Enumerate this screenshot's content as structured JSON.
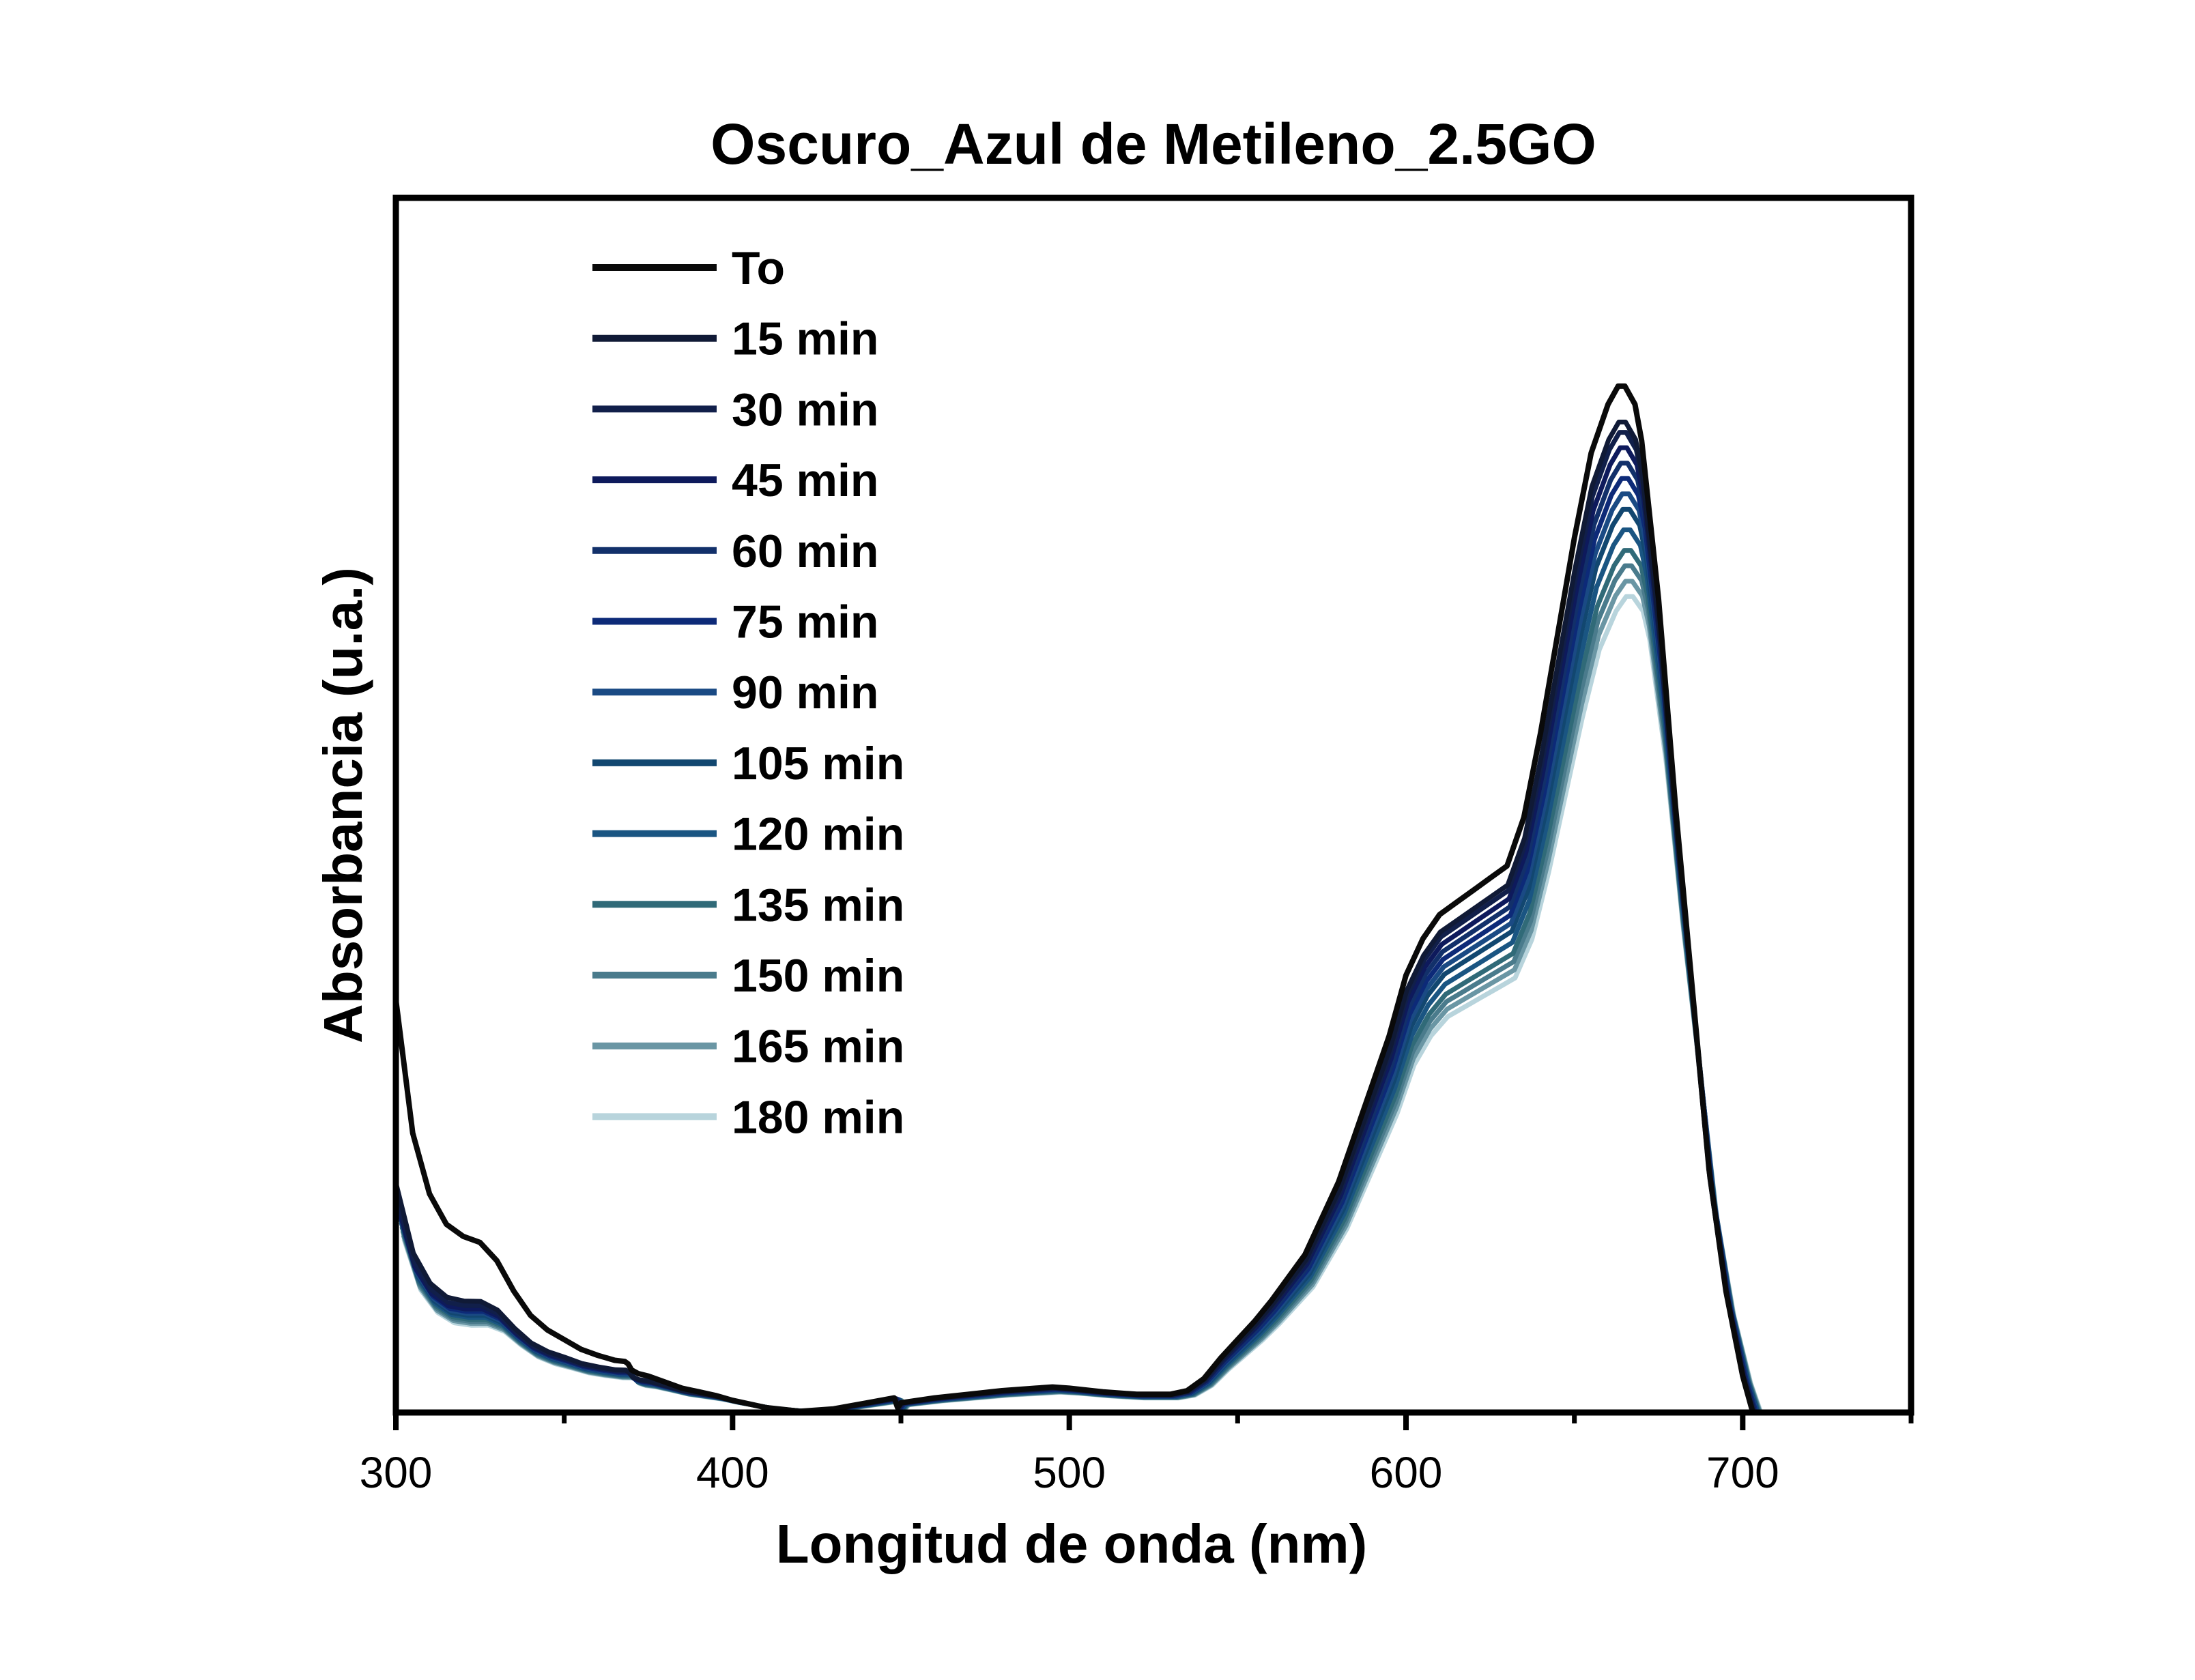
{
  "chart_data": {
    "type": "line",
    "title": "Oscuro_Azul de Metileno_2.5GO",
    "xlabel": "Longitud de onda (nm)",
    "ylabel": "Absorbancia (u.a.)",
    "xlim": [
      300,
      750
    ],
    "ylim": [
      0,
      1.0
    ],
    "xticks": [
      300,
      400,
      500,
      600,
      700
    ],
    "xticks_minor": [
      350,
      450,
      550,
      650,
      750
    ],
    "x_tick_labels": [
      "300",
      "400",
      "500",
      "600",
      "700"
    ],
    "y_ticks_shown": false,
    "grid": false,
    "legend": {
      "position": "top-left"
    },
    "base_profile": {
      "x": [
        300,
        305,
        310,
        315,
        320,
        325,
        330,
        335,
        340,
        345,
        350,
        355,
        360,
        365,
        368,
        369,
        370,
        372,
        375,
        380,
        385,
        390,
        395,
        400,
        410,
        420,
        430,
        440,
        448,
        449,
        450,
        455,
        460,
        470,
        480,
        490,
        495,
        500,
        510,
        520,
        530,
        535,
        540,
        545,
        550,
        555,
        560,
        570,
        580,
        590,
        595,
        600,
        605,
        610,
        615,
        620,
        625,
        630,
        635,
        640,
        645,
        650,
        655,
        660,
        663,
        665,
        668,
        670,
        675,
        680,
        685,
        690,
        695,
        700,
        703
      ],
      "y": [
        0.34,
        0.23,
        0.18,
        0.155,
        0.145,
        0.14,
        0.125,
        0.1,
        0.08,
        0.068,
        0.06,
        0.052,
        0.047,
        0.043,
        0.042,
        0.04,
        0.035,
        0.032,
        0.03,
        0.025,
        0.02,
        0.017,
        0.014,
        0.01,
        0.004,
        0.001,
        0.003,
        0.008,
        0.012,
        0.004,
        0.008,
        0.01,
        0.012,
        0.015,
        0.018,
        0.02,
        0.021,
        0.02,
        0.017,
        0.015,
        0.015,
        0.018,
        0.028,
        0.045,
        0.06,
        0.075,
        0.092,
        0.13,
        0.19,
        0.27,
        0.31,
        0.36,
        0.39,
        0.41,
        0.42,
        0.43,
        0.44,
        0.45,
        0.49,
        0.56,
        0.64,
        0.72,
        0.79,
        0.83,
        0.845,
        0.845,
        0.83,
        0.8,
        0.67,
        0.5,
        0.35,
        0.2,
        0.1,
        0.03,
        0.0
      ]
    },
    "series": [
      {
        "name": "To",
        "scale": 1.0,
        "uv_extra": 1.0,
        "shift": 0,
        "color": "#0a0a0a"
      },
      {
        "name": "15 min",
        "scale": 0.965,
        "uv_extra": 0.55,
        "shift": 0.2,
        "color": "#101a36"
      },
      {
        "name": "30 min",
        "scale": 0.955,
        "uv_extra": 0.52,
        "shift": 0.4,
        "color": "#111f4a"
      },
      {
        "name": "45 min",
        "scale": 0.94,
        "uv_extra": 0.5,
        "shift": 0.6,
        "color": "#0e1a5c"
      },
      {
        "name": "60 min",
        "scale": 0.925,
        "uv_extra": 0.5,
        "shift": 0.8,
        "color": "#12306a"
      },
      {
        "name": "75 min",
        "scale": 0.91,
        "uv_extra": 0.49,
        "shift": 1.0,
        "color": "#0d2a78"
      },
      {
        "name": "90 min",
        "scale": 0.895,
        "uv_extra": 0.48,
        "shift": 1.2,
        "color": "#1a4a84"
      },
      {
        "name": "105 min",
        "scale": 0.88,
        "uv_extra": 0.47,
        "shift": 1.4,
        "color": "#124770"
      },
      {
        "name": "120 min",
        "scale": 0.86,
        "uv_extra": 0.46,
        "shift": 1.6,
        "color": "#1a5582"
      },
      {
        "name": "135 min",
        "scale": 0.84,
        "uv_extra": 0.45,
        "shift": 1.8,
        "color": "#306a78"
      },
      {
        "name": "150 min",
        "scale": 0.825,
        "uv_extra": 0.44,
        "shift": 2.0,
        "color": "#4a7b8c"
      },
      {
        "name": "165 min",
        "scale": 0.81,
        "uv_extra": 0.43,
        "shift": 2.2,
        "color": "#6a96a4"
      },
      {
        "name": "180 min",
        "scale": 0.795,
        "uv_extra": 0.42,
        "shift": 2.4,
        "color": "#b8d4dc"
      }
    ]
  }
}
